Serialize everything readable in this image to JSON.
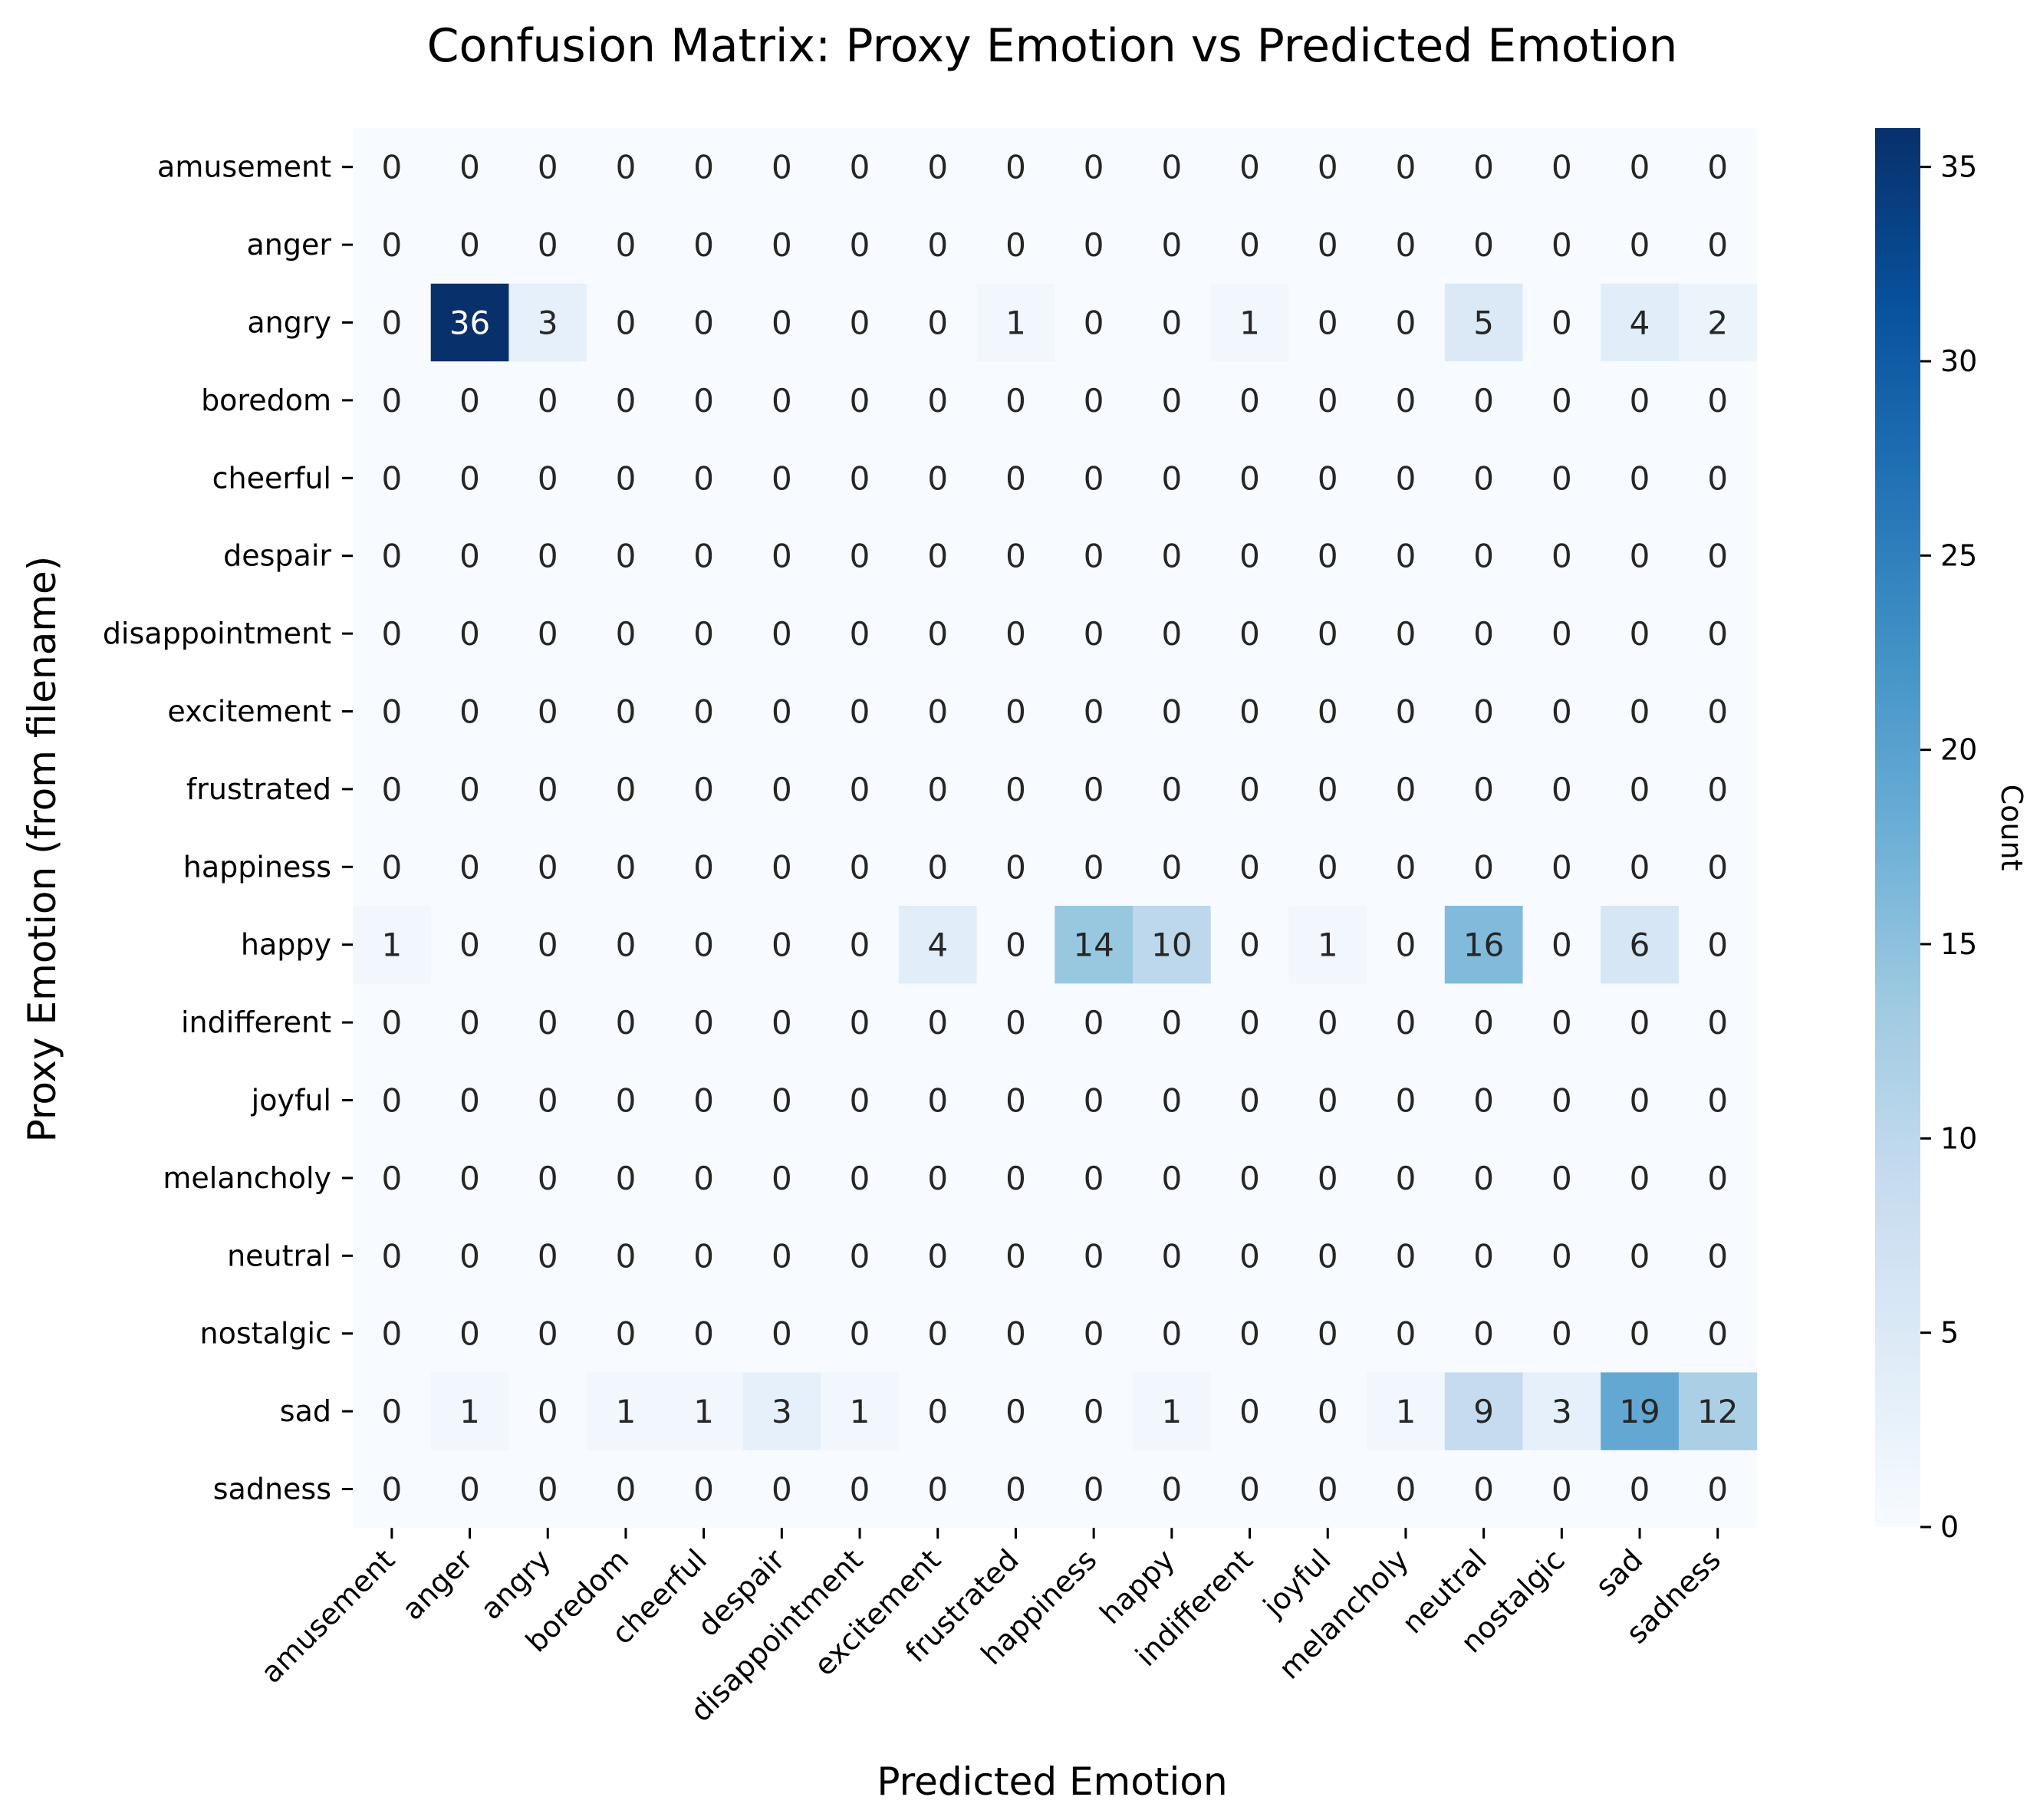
{
  "chart_data": {
    "type": "heatmap",
    "title": "Confusion Matrix: Proxy Emotion vs Predicted Emotion",
    "xlabel": "Predicted Emotion",
    "ylabel": "Proxy Emotion (from filename)",
    "colorbar": {
      "label": "Count",
      "ticks": [
        "0",
        "5",
        "10",
        "15",
        "20",
        "25",
        "30",
        "35"
      ],
      "range": [
        0,
        36
      ],
      "colormap": "Blues",
      "low_color": "#f7fbff",
      "high_color": "#08306b"
    },
    "x_categories": [
      "amusement",
      "anger",
      "angry",
      "boredom",
      "cheerful",
      "despair",
      "disappointment",
      "excitement",
      "frustrated",
      "happiness",
      "happy",
      "indifferent",
      "joyful",
      "melancholy",
      "neutral",
      "nostalgic",
      "sad",
      "sadness"
    ],
    "y_categories": [
      "amusement",
      "anger",
      "angry",
      "boredom",
      "cheerful",
      "despair",
      "disappointment",
      "excitement",
      "frustrated",
      "happiness",
      "happy",
      "indifferent",
      "joyful",
      "melancholy",
      "neutral",
      "nostalgic",
      "sad",
      "sadness"
    ],
    "values": [
      [
        0,
        0,
        0,
        0,
        0,
        0,
        0,
        0,
        0,
        0,
        0,
        0,
        0,
        0,
        0,
        0,
        0,
        0
      ],
      [
        0,
        0,
        0,
        0,
        0,
        0,
        0,
        0,
        0,
        0,
        0,
        0,
        0,
        0,
        0,
        0,
        0,
        0
      ],
      [
        0,
        36,
        3,
        0,
        0,
        0,
        0,
        0,
        1,
        0,
        0,
        1,
        0,
        0,
        5,
        0,
        4,
        2
      ],
      [
        0,
        0,
        0,
        0,
        0,
        0,
        0,
        0,
        0,
        0,
        0,
        0,
        0,
        0,
        0,
        0,
        0,
        0
      ],
      [
        0,
        0,
        0,
        0,
        0,
        0,
        0,
        0,
        0,
        0,
        0,
        0,
        0,
        0,
        0,
        0,
        0,
        0
      ],
      [
        0,
        0,
        0,
        0,
        0,
        0,
        0,
        0,
        0,
        0,
        0,
        0,
        0,
        0,
        0,
        0,
        0,
        0
      ],
      [
        0,
        0,
        0,
        0,
        0,
        0,
        0,
        0,
        0,
        0,
        0,
        0,
        0,
        0,
        0,
        0,
        0,
        0
      ],
      [
        0,
        0,
        0,
        0,
        0,
        0,
        0,
        0,
        0,
        0,
        0,
        0,
        0,
        0,
        0,
        0,
        0,
        0
      ],
      [
        0,
        0,
        0,
        0,
        0,
        0,
        0,
        0,
        0,
        0,
        0,
        0,
        0,
        0,
        0,
        0,
        0,
        0
      ],
      [
        0,
        0,
        0,
        0,
        0,
        0,
        0,
        0,
        0,
        0,
        0,
        0,
        0,
        0,
        0,
        0,
        0,
        0
      ],
      [
        1,
        0,
        0,
        0,
        0,
        0,
        0,
        4,
        0,
        14,
        10,
        0,
        1,
        0,
        16,
        0,
        6,
        0
      ],
      [
        0,
        0,
        0,
        0,
        0,
        0,
        0,
        0,
        0,
        0,
        0,
        0,
        0,
        0,
        0,
        0,
        0,
        0
      ],
      [
        0,
        0,
        0,
        0,
        0,
        0,
        0,
        0,
        0,
        0,
        0,
        0,
        0,
        0,
        0,
        0,
        0,
        0
      ],
      [
        0,
        0,
        0,
        0,
        0,
        0,
        0,
        0,
        0,
        0,
        0,
        0,
        0,
        0,
        0,
        0,
        0,
        0
      ],
      [
        0,
        0,
        0,
        0,
        0,
        0,
        0,
        0,
        0,
        0,
        0,
        0,
        0,
        0,
        0,
        0,
        0,
        0
      ],
      [
        0,
        0,
        0,
        0,
        0,
        0,
        0,
        0,
        0,
        0,
        0,
        0,
        0,
        0,
        0,
        0,
        0,
        0
      ],
      [
        0,
        1,
        0,
        1,
        1,
        3,
        1,
        0,
        0,
        0,
        1,
        0,
        0,
        1,
        9,
        3,
        19,
        12
      ],
      [
        0,
        0,
        0,
        0,
        0,
        0,
        0,
        0,
        0,
        0,
        0,
        0,
        0,
        0,
        0,
        0,
        0,
        0
      ]
    ]
  }
}
